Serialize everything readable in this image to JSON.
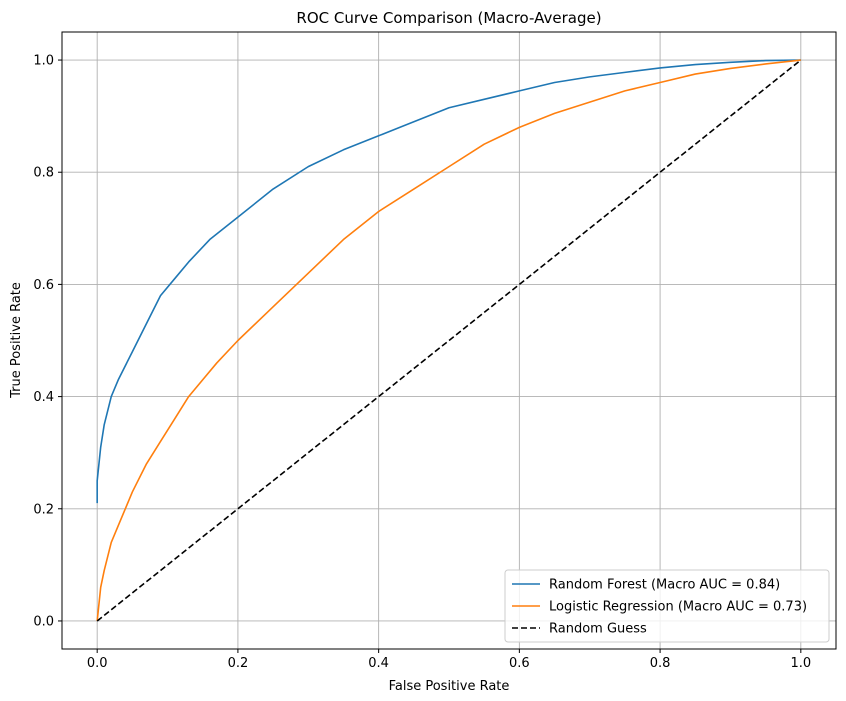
{
  "chart_data": {
    "type": "line",
    "title": "ROC Curve Comparison (Macro-Average)",
    "xlabel": "False Positive Rate",
    "ylabel": "True Positive Rate",
    "xlim": [
      -0.05,
      1.05
    ],
    "ylim": [
      -0.05,
      1.05
    ],
    "xticks": [
      0.0,
      0.2,
      0.4,
      0.6,
      0.8,
      1.0
    ],
    "yticks": [
      0.0,
      0.2,
      0.4,
      0.6,
      0.8,
      1.0
    ],
    "xtick_labels": [
      "0.0",
      "0.2",
      "0.4",
      "0.6",
      "0.8",
      "1.0"
    ],
    "ytick_labels": [
      "0.0",
      "0.2",
      "0.4",
      "0.6",
      "0.8",
      "1.0"
    ],
    "grid": true,
    "legend_position": "lower-right",
    "series": [
      {
        "name": "Random Forest (Macro AUC = 0.84)",
        "color": "#1f77b4",
        "dash": "solid",
        "x": [
          0.0,
          0.0,
          0.005,
          0.01,
          0.02,
          0.03,
          0.05,
          0.07,
          0.09,
          0.11,
          0.13,
          0.16,
          0.2,
          0.25,
          0.3,
          0.35,
          0.4,
          0.45,
          0.5,
          0.55,
          0.6,
          0.65,
          0.7,
          0.75,
          0.8,
          0.85,
          0.9,
          0.95,
          1.0
        ],
        "y": [
          0.21,
          0.25,
          0.31,
          0.35,
          0.4,
          0.43,
          0.48,
          0.53,
          0.58,
          0.61,
          0.64,
          0.68,
          0.72,
          0.77,
          0.81,
          0.84,
          0.865,
          0.89,
          0.915,
          0.93,
          0.945,
          0.96,
          0.97,
          0.978,
          0.986,
          0.992,
          0.996,
          0.999,
          1.0
        ]
      },
      {
        "name": "Logistic Regression (Macro AUC = 0.73)",
        "color": "#ff7f0e",
        "dash": "solid",
        "x": [
          0.0,
          0.005,
          0.01,
          0.02,
          0.03,
          0.05,
          0.07,
          0.09,
          0.11,
          0.13,
          0.15,
          0.17,
          0.2,
          0.25,
          0.3,
          0.35,
          0.4,
          0.45,
          0.5,
          0.55,
          0.6,
          0.65,
          0.7,
          0.75,
          0.8,
          0.85,
          0.9,
          0.95,
          1.0
        ],
        "y": [
          0.0,
          0.06,
          0.09,
          0.14,
          0.17,
          0.23,
          0.28,
          0.32,
          0.36,
          0.4,
          0.43,
          0.46,
          0.5,
          0.56,
          0.62,
          0.68,
          0.73,
          0.77,
          0.81,
          0.85,
          0.88,
          0.905,
          0.925,
          0.945,
          0.96,
          0.975,
          0.985,
          0.993,
          1.0
        ]
      },
      {
        "name": "Random Guess",
        "color": "#000000",
        "dash": "dashed",
        "x": [
          0.0,
          1.0
        ],
        "y": [
          0.0,
          1.0
        ]
      }
    ]
  }
}
